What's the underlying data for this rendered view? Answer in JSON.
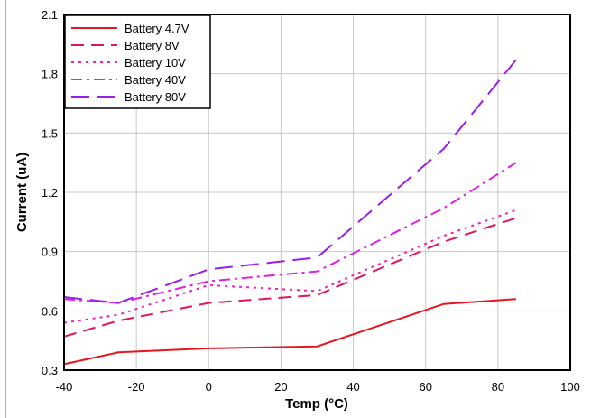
{
  "chart_data": {
    "type": "line",
    "title": "",
    "xlabel": "Temp (°C)",
    "ylabel": "Current (uA)",
    "xlim": [
      -40,
      100
    ],
    "ylim": [
      0.3,
      2.1
    ],
    "xticks": [
      "-40",
      "-20",
      "0",
      "20",
      "40",
      "60",
      "80",
      "100"
    ],
    "yticks": [
      "0.3",
      "0.6",
      "0.9",
      "1.2",
      "1.5",
      "1.8",
      "2.1"
    ],
    "grid": true,
    "legend_position": "top-left",
    "series": [
      {
        "name": "Battery 4.7V",
        "color": "#e8141e",
        "dash": "solid",
        "x": [
          -40,
          -25,
          0,
          30,
          65,
          85
        ],
        "y": [
          0.33,
          0.39,
          0.41,
          0.42,
          0.635,
          0.66
        ]
      },
      {
        "name": "Battery 8V",
        "color": "#e0155a",
        "dash": "dash",
        "x": [
          -40,
          -25,
          0,
          30,
          65,
          85
        ],
        "y": [
          0.47,
          0.55,
          0.64,
          0.68,
          0.95,
          1.07
        ]
      },
      {
        "name": "Battery 10V",
        "color": "#ee1fbe",
        "dash": "dot",
        "x": [
          -40,
          -25,
          0,
          30,
          65,
          85
        ],
        "y": [
          0.54,
          0.58,
          0.73,
          0.7,
          0.98,
          1.11
        ]
      },
      {
        "name": "Battery 40V",
        "color": "#e01ee6",
        "dash": "dashdot",
        "x": [
          -40,
          -25,
          0,
          30,
          65,
          85
        ],
        "y": [
          0.66,
          0.64,
          0.75,
          0.8,
          1.12,
          1.35
        ]
      },
      {
        "name": "Battery 80V",
        "color": "#9a1ee6",
        "dash": "longdash",
        "x": [
          -40,
          -25,
          0,
          30,
          65,
          85
        ],
        "y": [
          0.67,
          0.64,
          0.81,
          0.87,
          1.42,
          1.87
        ]
      }
    ]
  }
}
